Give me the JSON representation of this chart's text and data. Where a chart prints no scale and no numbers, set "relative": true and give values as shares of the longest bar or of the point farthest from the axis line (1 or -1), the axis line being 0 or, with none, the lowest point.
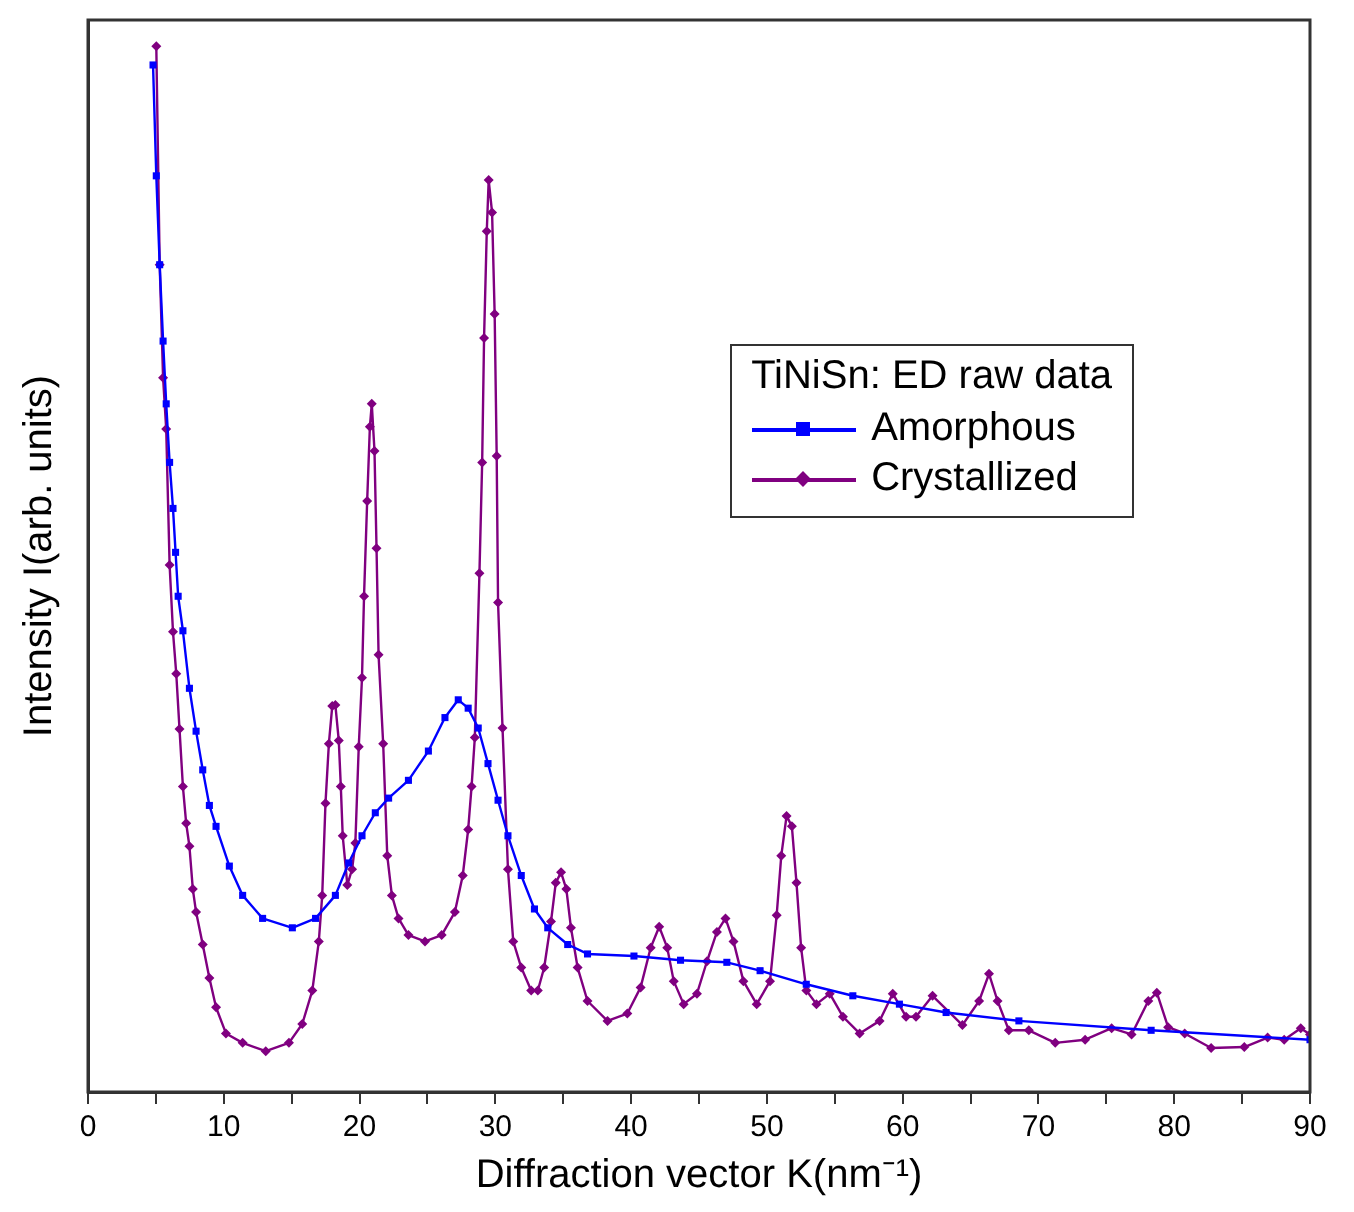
{
  "chart_data": {
    "type": "line",
    "relative": true,
    "xlabel": "Diffraction vector K(nm⁻¹)",
    "ylabel": "Intensity I(arb. units)",
    "legend_title": "TiNiSn: ED raw data",
    "legend": "right",
    "grid": false,
    "line_style": "solid",
    "xlim": [
      0,
      90
    ],
    "xticks": [
      0,
      {
        "value": 5,
        "label": null
      },
      10,
      {
        "value": 15,
        "label": null
      },
      20,
      {
        "value": 25,
        "label": null
      },
      30,
      {
        "value": 35,
        "label": null
      },
      40,
      {
        "value": 45,
        "label": null
      },
      50,
      {
        "value": 55,
        "label": null
      },
      60,
      {
        "value": 65,
        "label": null
      },
      70,
      {
        "value": 75,
        "label": null
      },
      80,
      {
        "value": 85,
        "label": null
      },
      90
    ],
    "series": [
      {
        "name": "Amorphous",
        "color": "#0000ff",
        "marker": "square",
        "x": [
          4.79,
          5.03,
          5.28,
          5.53,
          5.76,
          6.01,
          6.26,
          6.45,
          6.64,
          6.99,
          7.47,
          7.96,
          8.45,
          8.94,
          9.43,
          10.41,
          11.39,
          12.86,
          15.05,
          16.76,
          18.22,
          19.2,
          20.18,
          21.16,
          22.14,
          23.6,
          25.07,
          26.29,
          27.27,
          28.0,
          28.74,
          29.46,
          30.2,
          30.93,
          31.91,
          32.88,
          33.86,
          35.33,
          36.79,
          40.21,
          43.64,
          47.05,
          49.5,
          52.9,
          56.33,
          59.76,
          63.2,
          68.56,
          78.3,
          90
        ],
        "values": [
          0.982,
          0.876,
          0.791,
          0.718,
          0.658,
          0.602,
          0.558,
          0.516,
          0.474,
          0.441,
          0.386,
          0.345,
          0.308,
          0.274,
          0.254,
          0.216,
          0.188,
          0.166,
          0.157,
          0.166,
          0.188,
          0.219,
          0.245,
          0.267,
          0.281,
          0.298,
          0.326,
          0.358,
          0.375,
          0.367,
          0.348,
          0.314,
          0.279,
          0.245,
          0.207,
          0.175,
          0.157,
          0.141,
          0.132,
          0.13,
          0.126,
          0.124,
          0.116,
          0.103,
          0.092,
          0.084,
          0.076,
          0.068,
          0.059,
          0.05
        ]
      },
      {
        "name": "Crystallized",
        "color": "#800080",
        "marker": "diamond",
        "x": [
          5.03,
          5.28,
          5.53,
          5.76,
          6.01,
          6.26,
          6.5,
          6.74,
          6.99,
          7.23,
          7.47,
          7.72,
          7.96,
          8.45,
          8.94,
          9.43,
          10.16,
          11.39,
          13.09,
          14.8,
          15.78,
          16.52,
          17.0,
          17.25,
          17.49,
          17.74,
          17.99,
          18.22,
          18.47,
          18.62,
          18.76,
          19.1,
          19.45,
          19.69,
          19.94,
          20.18,
          20.33,
          20.56,
          20.76,
          20.9,
          21.1,
          21.25,
          21.4,
          21.74,
          22.04,
          22.38,
          22.87,
          23.6,
          24.82,
          26.05,
          27.02,
          27.6,
          28.0,
          28.25,
          28.49,
          28.83,
          29.03,
          29.17,
          29.37,
          29.51,
          29.76,
          29.95,
          30.1,
          30.2,
          30.53,
          30.93,
          31.32,
          31.91,
          32.64,
          33.13,
          33.6,
          34.1,
          34.45,
          34.84,
          35.23,
          35.57,
          36.06,
          36.79,
          38.26,
          39.72,
          40.7,
          41.44,
          42.07,
          42.66,
          43.14,
          43.87,
          44.85,
          45.59,
          46.32,
          46.95,
          47.54,
          48.27,
          49.25,
          50.23,
          50.72,
          51.06,
          51.45,
          51.84,
          52.18,
          52.52,
          52.91,
          53.65,
          54.63,
          55.6,
          56.83,
          58.3,
          59.27,
          60.25,
          60.98,
          62.2,
          64.4,
          65.63,
          66.36,
          66.99,
          67.82,
          69.29,
          71.24,
          73.44,
          75.39,
          76.86,
          78.09,
          78.72,
          79.55,
          80.77,
          82.72,
          85.16,
          86.88,
          88.1,
          89.32,
          90
        ],
        "values": [
          1.0,
          0.791,
          0.683,
          0.634,
          0.504,
          0.44,
          0.4,
          0.347,
          0.292,
          0.257,
          0.235,
          0.194,
          0.172,
          0.141,
          0.109,
          0.081,
          0.056,
          0.047,
          0.039,
          0.047,
          0.065,
          0.097,
          0.144,
          0.188,
          0.276,
          0.333,
          0.369,
          0.37,
          0.336,
          0.292,
          0.245,
          0.198,
          0.213,
          0.238,
          0.33,
          0.396,
          0.474,
          0.565,
          0.636,
          0.658,
          0.613,
          0.52,
          0.418,
          0.333,
          0.226,
          0.188,
          0.166,
          0.15,
          0.144,
          0.15,
          0.172,
          0.207,
          0.251,
          0.292,
          0.339,
          0.496,
          0.602,
          0.721,
          0.823,
          0.872,
          0.841,
          0.744,
          0.608,
          0.468,
          0.348,
          0.213,
          0.144,
          0.119,
          0.097,
          0.097,
          0.119,
          0.163,
          0.2,
          0.21,
          0.194,
          0.157,
          0.119,
          0.087,
          0.068,
          0.075,
          0.1,
          0.138,
          0.158,
          0.138,
          0.106,
          0.084,
          0.094,
          0.125,
          0.153,
          0.166,
          0.144,
          0.106,
          0.084,
          0.106,
          0.169,
          0.226,
          0.264,
          0.254,
          0.2,
          0.138,
          0.097,
          0.084,
          0.094,
          0.072,
          0.056,
          0.068,
          0.094,
          0.072,
          0.072,
          0.092,
          0.064,
          0.087,
          0.113,
          0.087,
          0.059,
          0.059,
          0.047,
          0.05,
          0.061,
          0.055,
          0.087,
          0.095,
          0.062,
          0.056,
          0.042,
          0.043,
          0.052,
          0.05,
          0.061,
          0.055
        ]
      }
    ]
  }
}
